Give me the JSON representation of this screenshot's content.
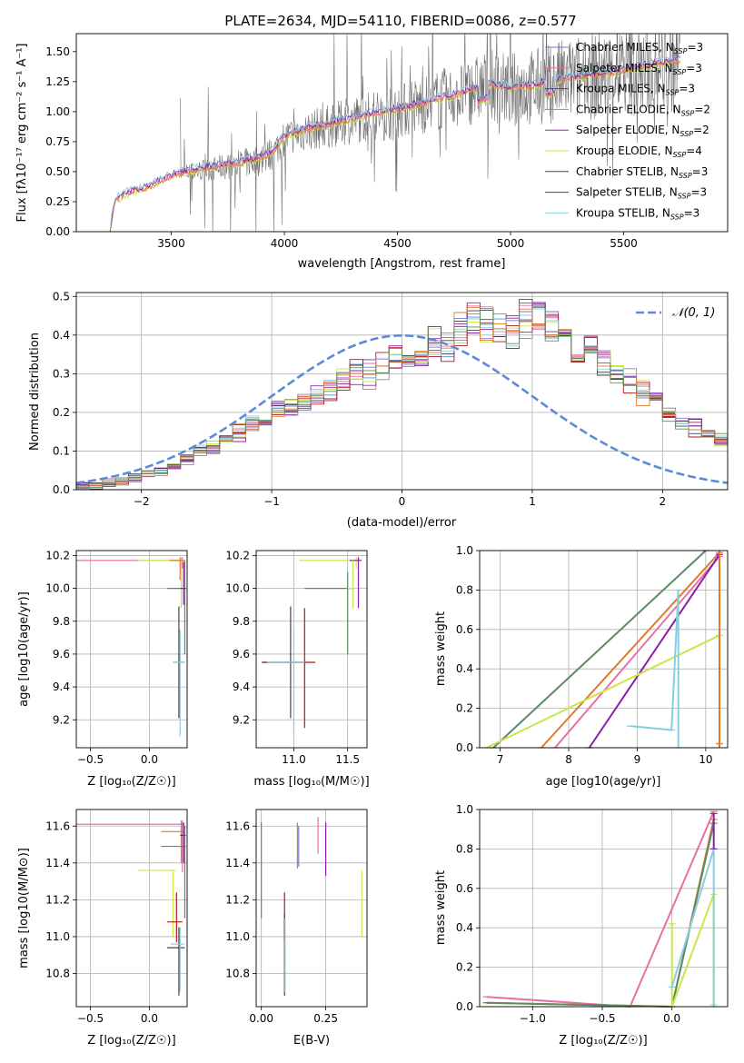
{
  "title": "PLATE=2634, MJD=54110, FIBERID=0086, z=0.577",
  "palette": {
    "Chabrier MILES": "#6a7fd1",
    "Salpeter MILES": "#e86fa8",
    "Kroupa MILES": "#8a1fa8",
    "Chabrier ELODIE": "#8c8c8c",
    "Salpeter ELODIE": "#9a22b0",
    "Kroupa ELODIE": "#c9e64a",
    "Chabrier STELIB": "#444444",
    "Salpeter STELIB": "#b01818",
    "Kroupa STELIB": "#88cde0",
    "orange": "#e07a2e",
    "green": "#5c8a64",
    "dashed": "#5b8bd6"
  },
  "chart_data": [
    {
      "id": "spectrum",
      "type": "line",
      "title": "PLATE=2634, MJD=54110, FIBERID=0086, z=0.577",
      "xlabel": "wavelength [Angstrom, rest frame]",
      "ylabel": "Flux [f_λ 10^-17 erg cm^-2 s^-1 A^-1]",
      "xlim": [
        3080,
        5960
      ],
      "ylim": [
        0,
        1.65
      ],
      "xticks": [
        "3500",
        "4000",
        "4500",
        "5000",
        "5500"
      ],
      "yticks": [
        "0.00",
        "0.25",
        "0.50",
        "0.75",
        "1.00",
        "1.25",
        "1.50"
      ],
      "legend": [
        {
          "label": "Chabrier MILES, N_SSP=3",
          "base": "Chabrier MILES, N",
          "sub": "SSP",
          "tail": "=3",
          "color": "#6a7fd1"
        },
        {
          "label": "Salpeter MILES, N_SSP=3",
          "base": "Salpeter MILES, N",
          "sub": "SSP",
          "tail": "=3",
          "color": "#e86fa8"
        },
        {
          "label": "Kroupa MILES, N_SSP=3",
          "base": "Kroupa MILES, N",
          "sub": "SSP",
          "tail": "=3",
          "color": "#8a1fa8"
        },
        {
          "label": "Chabrier ELODIE, N_SSP=2",
          "base": "Chabrier ELODIE, N",
          "sub": "SSP",
          "tail": "=2",
          "color": "#8c8c8c"
        },
        {
          "label": "Salpeter ELODIE, N_SSP=2",
          "base": "Salpeter ELODIE, N",
          "sub": "SSP",
          "tail": "=2",
          "color": "#9a22b0"
        },
        {
          "label": "Kroupa ELODIE, N_SSP=4",
          "base": "Kroupa ELODIE, N",
          "sub": "SSP",
          "tail": "=4",
          "color": "#c9e64a"
        },
        {
          "label": "Chabrier STELIB, N_SSP=3",
          "base": "Chabrier STELIB, N",
          "sub": "SSP",
          "tail": "=3",
          "color": "#444444"
        },
        {
          "label": "Salpeter STELIB, N_SSP=3",
          "base": "Salpeter STELIB, N",
          "sub": "SSP",
          "tail": "=3",
          "color": "#b01818"
        },
        {
          "label": "Kroupa STELIB, N_SSP=3",
          "base": "Kroupa STELIB, N",
          "sub": "SSP",
          "tail": "=3",
          "color": "#88cde0"
        }
      ],
      "model_curve": {
        "x": [
          3230,
          3250,
          3300,
          3400,
          3500,
          3550,
          3600,
          3700,
          3800,
          3900,
          3950,
          4000,
          4100,
          4200,
          4300,
          4400,
          4500,
          4600,
          4700,
          4800,
          4900,
          5000,
          5100,
          5200,
          5300,
          5400,
          5500,
          5600,
          5700,
          5750
        ],
        "y": [
          0.0,
          0.25,
          0.3,
          0.36,
          0.45,
          0.48,
          0.5,
          0.53,
          0.56,
          0.6,
          0.66,
          0.78,
          0.84,
          0.88,
          0.93,
          0.97,
          1.0,
          1.05,
          1.1,
          1.15,
          1.22,
          1.18,
          1.2,
          1.25,
          1.28,
          1.3,
          1.33,
          1.37,
          1.4,
          1.42
        ]
      },
      "data_noise": {
        "x_start": 3540,
        "x_end": 5750
      }
    },
    {
      "id": "residuals",
      "type": "bar",
      "xlabel": "(data-model)/error",
      "ylabel": "Normed distribution",
      "xlim": [
        -2.5,
        2.5
      ],
      "ylim": [
        0,
        0.51
      ],
      "xticks": [
        "−2",
        "−1",
        "0",
        "1",
        "2"
      ],
      "yticks": [
        "0.0",
        "0.1",
        "0.2",
        "0.3",
        "0.4",
        "0.5"
      ],
      "legend": "𝒩(0, 1)",
      "bin_width": 0.1,
      "histogram": [
        0.01,
        0.01,
        0.02,
        0.02,
        0.03,
        0.04,
        0.05,
        0.06,
        0.08,
        0.1,
        0.11,
        0.13,
        0.15,
        0.17,
        0.18,
        0.2,
        0.21,
        0.22,
        0.24,
        0.26,
        0.28,
        0.3,
        0.3,
        0.32,
        0.34,
        0.33,
        0.36,
        0.38,
        0.37,
        0.42,
        0.45,
        0.43,
        0.42,
        0.41,
        0.44,
        0.46,
        0.42,
        0.4,
        0.38,
        0.36,
        0.33,
        0.3,
        0.28,
        0.25,
        0.22,
        0.2,
        0.18,
        0.16,
        0.14,
        0.13
      ]
    },
    {
      "id": "age-vs-Z",
      "type": "scatter",
      "xlabel": "Z [log10(Z/Z⊙)]",
      "ylabel": "age  [log10(age/yr)]",
      "xlim": [
        -0.62,
        0.32
      ],
      "ylim": [
        9.03,
        10.23
      ],
      "xticks": [
        "−0.5",
        "0.0"
      ],
      "yticks": [
        "9.2",
        "9.4",
        "9.6",
        "9.8",
        "10.0",
        "10.2"
      ]
    },
    {
      "id": "age-vs-mass",
      "type": "scatter",
      "xlabel": "mass [log10(M/M⊙)]",
      "ylabel": "",
      "xlim": [
        10.65,
        11.68
      ],
      "ylim": [
        9.03,
        10.23
      ],
      "xticks": [
        "11.0",
        "11.5"
      ],
      "yticks": [
        "9.2",
        "9.4",
        "9.6",
        "9.8",
        "10.0",
        "10.2"
      ]
    },
    {
      "id": "weight-vs-age",
      "type": "line",
      "xlabel": "age  [log10(age/yr)]",
      "ylabel": "mass weight",
      "xlim": [
        6.7,
        10.32
      ],
      "ylim": [
        0,
        1
      ],
      "xticks": [
        "7",
        "8",
        "9",
        "10"
      ],
      "yticks": [
        "0.0",
        "0.2",
        "0.4",
        "0.6",
        "0.8",
        "1.0"
      ]
    },
    {
      "id": "mass-vs-Z",
      "type": "scatter",
      "xlabel": "Z [log10(Z/Z⊙)]",
      "ylabel": "mass [log10(M/M⊙)]",
      "xlim": [
        -0.62,
        0.32
      ],
      "ylim": [
        10.62,
        11.69
      ],
      "xticks": [
        "−0.5",
        "0.0"
      ],
      "yticks": [
        "10.8",
        "11.0",
        "11.2",
        "11.4",
        "11.6"
      ]
    },
    {
      "id": "mass-vs-ebv",
      "type": "scatter",
      "xlabel": "E(B-V)",
      "ylabel": "",
      "xlim": [
        -0.02,
        0.41
      ],
      "ylim": [
        10.62,
        11.69
      ],
      "xticks": [
        "0.00",
        "0.25"
      ],
      "yticks": [
        "10.8",
        "11.0",
        "11.2",
        "11.4",
        "11.6"
      ]
    },
    {
      "id": "weight-vs-Z",
      "type": "line",
      "xlabel": "Z [log10(Z/Z⊙)]",
      "ylabel": "mass weight",
      "xlim": [
        -1.38,
        0.4
      ],
      "ylim": [
        0,
        1
      ],
      "xticks": [
        "−1.0",
        "−0.5",
        "0.0"
      ],
      "yticks": [
        "0.0",
        "0.2",
        "0.4",
        "0.6",
        "0.8",
        "1.0"
      ]
    }
  ]
}
